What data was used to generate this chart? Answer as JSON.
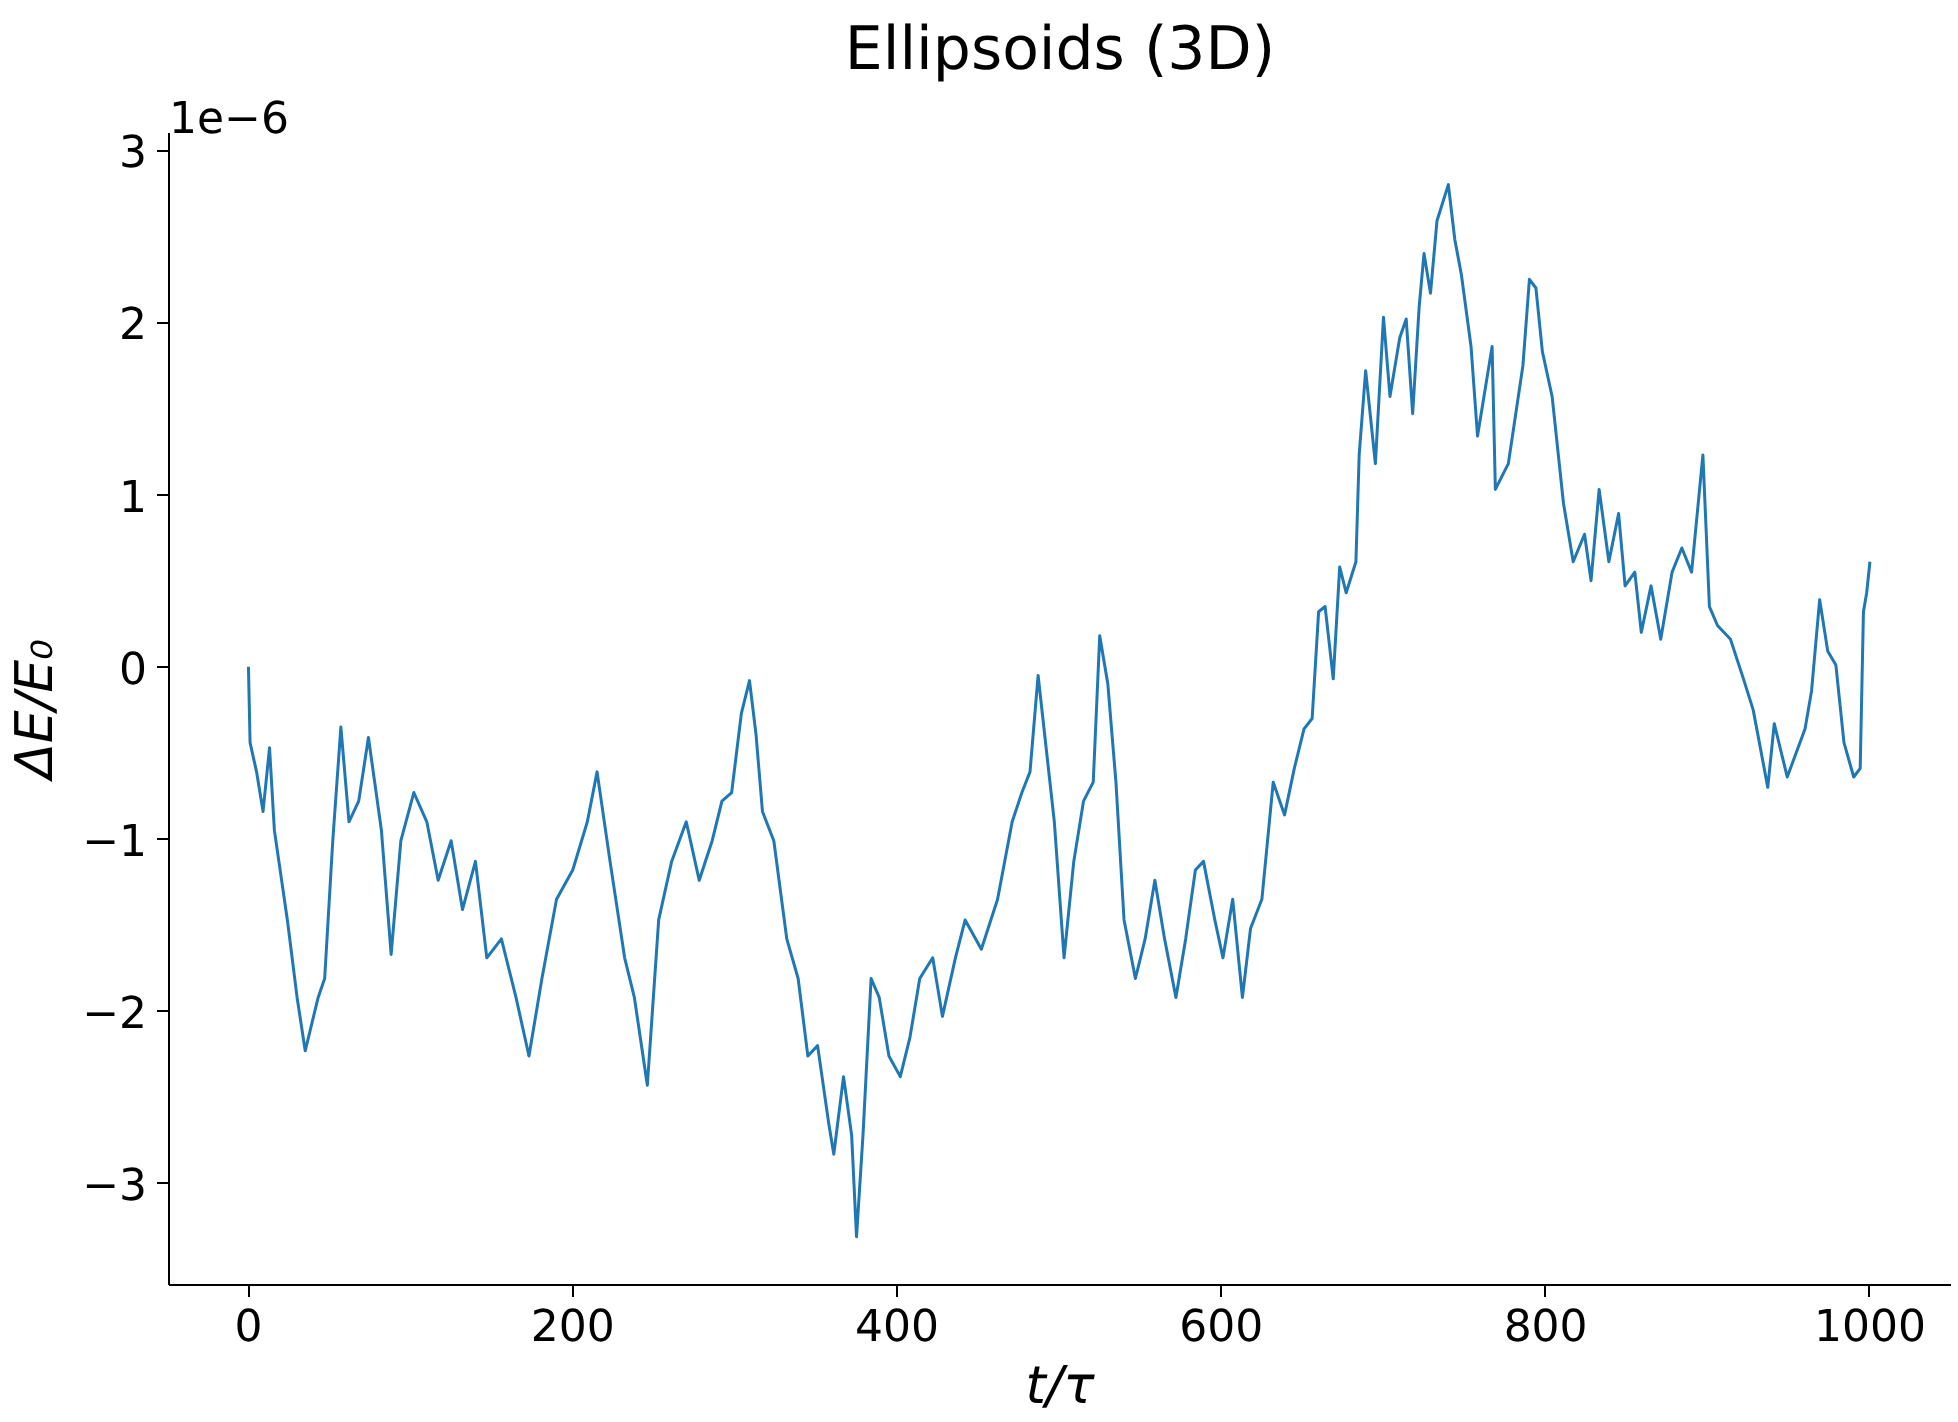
{
  "chart_data": {
    "type": "line",
    "title": "Ellipsoids (3D)",
    "xlabel": "t/τ",
    "ylabel": "ΔE/E₀",
    "annotations": [
      "1e−6"
    ],
    "x": [
      0,
      1,
      5,
      9,
      13,
      16,
      24,
      30,
      35,
      43,
      47,
      52,
      57,
      62,
      68,
      74,
      82,
      88,
      94,
      102,
      110,
      117,
      125,
      132,
      140,
      147,
      156,
      165,
      173,
      181,
      190,
      200,
      209,
      215,
      223,
      232,
      238,
      246,
      253,
      261,
      270,
      278,
      286,
      292,
      298,
      304,
      309,
      313,
      317,
      324,
      332,
      339,
      345,
      351,
      358,
      361,
      367,
      372,
      375,
      379,
      384,
      389,
      395,
      402,
      408,
      414,
      422,
      428,
      436,
      442,
      452,
      462,
      471,
      477,
      482,
      487,
      491,
      497,
      503,
      509,
      515,
      521,
      525,
      530,
      535,
      540,
      547,
      553,
      559,
      565,
      572,
      578,
      584,
      589,
      596,
      601,
      607,
      613,
      618,
      625,
      632,
      639,
      645,
      651,
      656,
      660,
      664,
      669,
      673,
      677,
      683,
      685,
      689,
      695,
      700,
      704,
      710,
      714,
      718,
      722,
      725,
      729,
      733,
      740,
      744,
      748,
      754,
      758,
      767,
      769,
      777,
      786,
      790,
      794,
      798,
      804,
      811,
      817,
      824,
      828,
      833,
      839,
      845,
      849,
      855,
      859,
      865,
      871,
      878,
      884,
      890,
      897,
      901,
      906,
      914,
      922,
      928,
      937,
      941,
      949,
      960,
      964,
      969,
      974,
      979,
      984,
      990,
      994,
      996,
      998,
      1000
    ],
    "series": [
      {
        "color": "#1f77b4",
        "values": [
          0,
          -0.44,
          -0.61,
          -0.84,
          -0.47,
          -0.95,
          -1.47,
          -1.92,
          -2.23,
          -1.92,
          -1.81,
          -1.01,
          -0.35,
          -0.9,
          -0.78,
          -0.41,
          -0.95,
          -1.67,
          -1.01,
          -0.73,
          -0.9,
          -1.24,
          -1.01,
          -1.41,
          -1.13,
          -1.69,
          -1.58,
          -1.92,
          -2.26,
          -1.81,
          -1.35,
          -1.18,
          -0.9,
          -0.61,
          -1.13,
          -1.69,
          -1.92,
          -2.43,
          -1.47,
          -1.13,
          -0.9,
          -1.24,
          -1.01,
          -0.78,
          -0.73,
          -0.27,
          -0.08,
          -0.39,
          -0.84,
          -1.01,
          -1.58,
          -1.81,
          -2.26,
          -2.2,
          -2.66,
          -2.83,
          -2.38,
          -2.72,
          -3.31,
          -2.72,
          -1.81,
          -1.92,
          -2.26,
          -2.38,
          -2.15,
          -1.81,
          -1.69,
          -2.03,
          -1.69,
          -1.47,
          -1.64,
          -1.35,
          -0.9,
          -0.73,
          -0.61,
          -0.05,
          -0.39,
          -0.9,
          -1.69,
          -1.13,
          -0.78,
          -0.67,
          0.18,
          -0.1,
          -0.67,
          -1.47,
          -1.81,
          -1.58,
          -1.24,
          -1.58,
          -1.92,
          -1.58,
          -1.18,
          -1.13,
          -1.47,
          -1.69,
          -1.35,
          -1.92,
          -1.52,
          -1.35,
          -0.67,
          -0.86,
          -0.59,
          -0.36,
          -0.3,
          0.32,
          0.35,
          -0.07,
          0.58,
          0.43,
          0.61,
          1.23,
          1.72,
          1.18,
          2.03,
          1.57,
          1.91,
          2.02,
          1.47,
          2.09,
          2.4,
          2.17,
          2.59,
          2.8,
          2.48,
          2.28,
          1.86,
          1.34,
          1.86,
          1.03,
          1.18,
          1.75,
          2.25,
          2.2,
          1.83,
          1.57,
          0.95,
          0.61,
          0.77,
          0.5,
          1.03,
          0.61,
          0.89,
          0.47,
          0.55,
          0.2,
          0.47,
          0.16,
          0.55,
          0.69,
          0.55,
          1.23,
          0.35,
          0.24,
          0.16,
          -0.07,
          -0.25,
          -0.7,
          -0.33,
          -0.64,
          -0.36,
          -0.14,
          0.39,
          0.09,
          0.01,
          -0.44,
          -0.64,
          -0.59,
          0.32,
          0.43,
          0.61
        ]
      }
    ],
    "xlim": [
      -49,
      1050
    ],
    "ylim": [
      -3.59,
      3.1
    ],
    "xticks": [
      0,
      200,
      400,
      600,
      800,
      1000
    ],
    "yticks": [
      -3,
      -2,
      -1,
      0,
      1,
      2,
      3
    ],
    "grid": false,
    "line_style": "solid",
    "marker": "none"
  }
}
